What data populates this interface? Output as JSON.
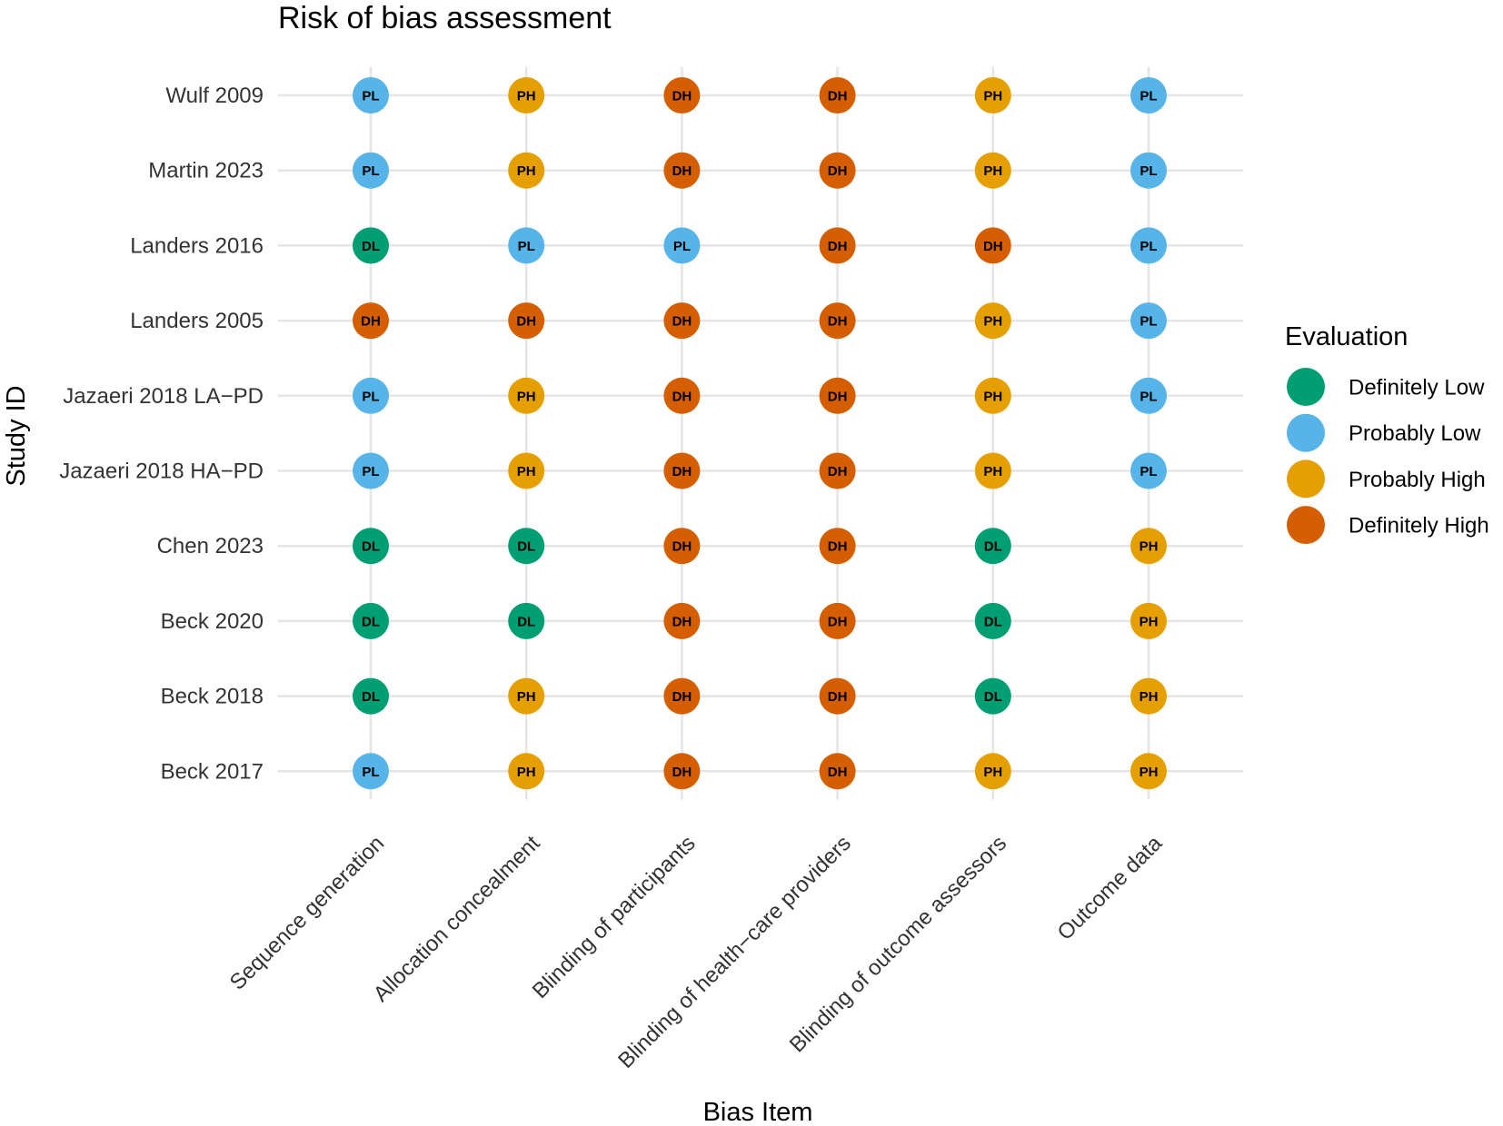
{
  "chart_data": {
    "type": "scatter",
    "title": "Risk of bias assessment",
    "xlabel": "Bias Item",
    "ylabel": "Study ID",
    "grid": true,
    "legend_position": "right",
    "legend": {
      "title": "Evaluation",
      "entries": [
        {
          "code": "DL",
          "label": "Definitely Low",
          "color": "#009E73"
        },
        {
          "code": "PL",
          "label": "Probably Low",
          "color": "#56B4E9"
        },
        {
          "code": "PH",
          "label": "Probably High",
          "color": "#E69F00"
        },
        {
          "code": "DH",
          "label": "Definitely High",
          "color": "#D55E00"
        }
      ]
    },
    "x_categories": [
      "Sequence generation",
      "Allocation concealment",
      "Blinding of participants",
      "Blinding of health−care providers",
      "Blinding of outcome assessors",
      "Outcome data"
    ],
    "y_categories": [
      "Wulf 2009",
      "Martin 2023",
      "Landers 2016",
      "Landers 2005",
      "Jazaeri 2018 LA−PD",
      "Jazaeri 2018 HA−PD",
      "Chen 2023",
      "Beck 2020",
      "Beck 2018",
      "Beck 2017 "
    ],
    "values": [
      [
        "PL",
        "PH",
        "DH",
        "DH",
        "PH",
        "PL"
      ],
      [
        "PL",
        "PH",
        "DH",
        "DH",
        "PH",
        "PL"
      ],
      [
        "DL",
        "PL",
        "PL",
        "DH",
        "DH",
        "PL"
      ],
      [
        "DH",
        "DH",
        "DH",
        "DH",
        "PH",
        "PL"
      ],
      [
        "PL",
        "PH",
        "DH",
        "DH",
        "PH",
        "PL"
      ],
      [
        "PL",
        "PH",
        "DH",
        "DH",
        "PH",
        "PL"
      ],
      [
        "DL",
        "DL",
        "DH",
        "DH",
        "DL",
        "PH"
      ],
      [
        "DL",
        "DL",
        "DH",
        "DH",
        "DL",
        "PH"
      ],
      [
        "DL",
        "PH",
        "DH",
        "DH",
        "DL",
        "PH"
      ],
      [
        "PL",
        "PH",
        "DH",
        "DH",
        "PH",
        "PH"
      ]
    ]
  }
}
